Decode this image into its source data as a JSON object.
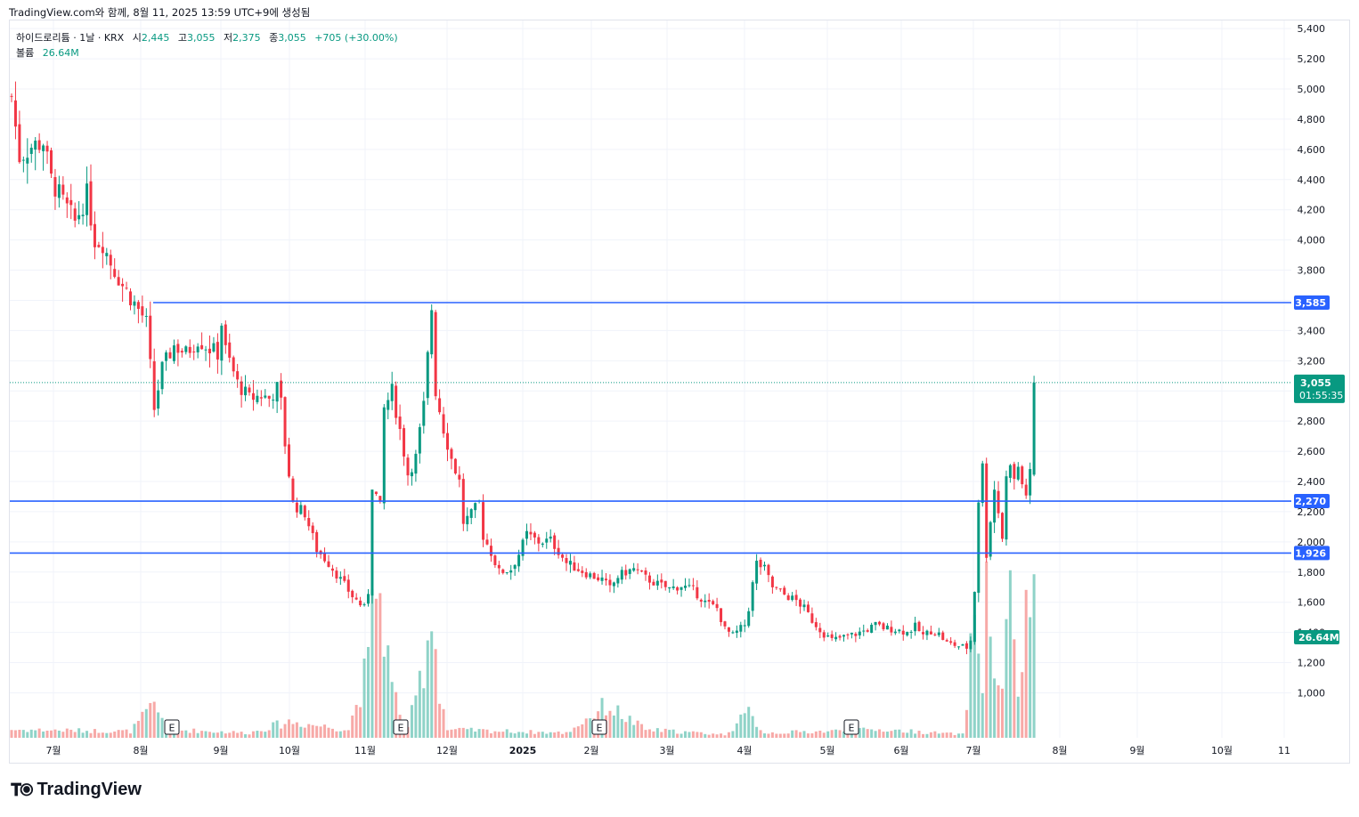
{
  "header": {
    "attribution": "TradingView.com와 함께, 8월 11, 2025 13:59 UTC+9에 생성됨"
  },
  "legend": {
    "symbol": "하이드로리튬 · 1날 · KRX",
    "open_label": "시",
    "open": "2,445",
    "high_label": "고",
    "high": "3,055",
    "low_label": "저",
    "low": "2,375",
    "close_label": "종",
    "close": "3,055",
    "change": "+705 (+30.00%)",
    "volume_label": "볼륨",
    "volume": "26.64M"
  },
  "footer": {
    "brand": "TradingView"
  },
  "colors": {
    "up": "#089981",
    "down": "#f23645",
    "up_vol": "#8fd3c8",
    "down_vol": "#f7a9a7",
    "hline": "#2962ff",
    "grid": "#f0f3fa"
  },
  "chart_data": {
    "type": "candlestick",
    "y_axis": {
      "ticks": [
        "1,000",
        "1,200",
        "1,400",
        "1,600",
        "1,800",
        "2,000",
        "2,200",
        "2,400",
        "2,600",
        "2,800",
        "3,000",
        "3,200",
        "3,400",
        "3,600",
        "3,800",
        "4,000",
        "4,200",
        "4,400",
        "4,600",
        "4,800",
        "5,000",
        "5,200",
        "5,400"
      ],
      "range": [
        920,
        5440
      ]
    },
    "x_axis": {
      "ticks": [
        "7월",
        "8월",
        "9월",
        "10월",
        "11월",
        "12월",
        "2025",
        "2월",
        "3월",
        "4월",
        "5월",
        "6월",
        "7월",
        "8월",
        "9월",
        "10월",
        "11"
      ]
    },
    "horizontal_lines": [
      3585,
      2270,
      1926
    ],
    "price_labels": [
      {
        "text": "3,585",
        "value": 3585,
        "color": "#2962ff"
      },
      {
        "text": "2,270",
        "value": 2270,
        "color": "#2962ff"
      },
      {
        "text": "1,926",
        "value": 1926,
        "color": "#2962ff"
      }
    ],
    "last_price": {
      "value": 3055,
      "text": "3,055",
      "countdown": "01:55:35"
    },
    "volume_label": "26.64M",
    "earnings_markers": [
      "E",
      "E",
      "E",
      "E"
    ],
    "price_path": [
      [
        0,
        4950
      ],
      [
        2,
        4550
      ],
      [
        5,
        4620
      ],
      [
        8,
        4650
      ],
      [
        10,
        4400
      ],
      [
        13,
        4250
      ],
      [
        16,
        4120
      ],
      [
        19,
        4300
      ],
      [
        21,
        4000
      ],
      [
        23,
        3980
      ],
      [
        25,
        3850
      ],
      [
        28,
        3700
      ],
      [
        31,
        3580
      ],
      [
        33,
        3500
      ],
      [
        34,
        3450
      ],
      [
        36,
        2880
      ],
      [
        38,
        3150
      ],
      [
        41,
        3300
      ],
      [
        44,
        3250
      ],
      [
        47,
        3340
      ],
      [
        50,
        3280
      ],
      [
        52,
        3250
      ],
      [
        53,
        3450
      ],
      [
        54,
        3270
      ],
      [
        57,
        3050
      ],
      [
        60,
        2950
      ],
      [
        63,
        2970
      ],
      [
        65,
        2950
      ],
      [
        67,
        3020
      ],
      [
        68,
        2920
      ],
      [
        69,
        2650
      ],
      [
        71,
        2250
      ],
      [
        74,
        2190
      ],
      [
        77,
        1950
      ],
      [
        80,
        1860
      ],
      [
        83,
        1750
      ],
      [
        86,
        1640
      ],
      [
        89,
        1560
      ],
      [
        90,
        1670
      ],
      [
        91,
        2380
      ],
      [
        93,
        2230
      ],
      [
        94,
        2880
      ],
      [
        96,
        3000
      ],
      [
        98,
        2740
      ],
      [
        100,
        2450
      ],
      [
        102,
        2560
      ],
      [
        104,
        2900
      ],
      [
        106,
        3550
      ],
      [
        107,
        3000
      ],
      [
        109,
        2750
      ],
      [
        111,
        2550
      ],
      [
        113,
        2400
      ],
      [
        114,
        2130
      ],
      [
        116,
        2180
      ],
      [
        118,
        2260
      ],
      [
        119,
        2040
      ],
      [
        121,
        1930
      ],
      [
        123,
        1800
      ],
      [
        126,
        1820
      ],
      [
        128,
        1920
      ],
      [
        130,
        2050
      ],
      [
        133,
        2000
      ],
      [
        136,
        2010
      ],
      [
        138,
        1940
      ],
      [
        140,
        1860
      ],
      [
        143,
        1820
      ],
      [
        146,
        1780
      ],
      [
        149,
        1750
      ],
      [
        151,
        1690
      ],
      [
        153,
        1770
      ],
      [
        155,
        1800
      ],
      [
        157,
        1820
      ],
      [
        158,
        1800
      ],
      [
        160,
        1760
      ],
      [
        163,
        1720
      ],
      [
        166,
        1690
      ],
      [
        169,
        1710
      ],
      [
        172,
        1680
      ],
      [
        175,
        1600
      ],
      [
        178,
        1560
      ],
      [
        180,
        1420
      ],
      [
        182,
        1380
      ],
      [
        185,
        1450
      ],
      [
        186,
        1560
      ],
      [
        187,
        1720
      ],
      [
        188,
        1860
      ],
      [
        190,
        1820
      ],
      [
        192,
        1700
      ],
      [
        195,
        1650
      ],
      [
        198,
        1610
      ],
      [
        200,
        1560
      ],
      [
        202,
        1480
      ],
      [
        205,
        1390
      ],
      [
        207,
        1350
      ],
      [
        210,
        1370
      ],
      [
        213,
        1390
      ],
      [
        216,
        1420
      ],
      [
        218,
        1450
      ],
      [
        220,
        1430
      ],
      [
        223,
        1420
      ],
      [
        226,
        1400
      ],
      [
        228,
        1440
      ],
      [
        230,
        1380
      ],
      [
        232,
        1410
      ],
      [
        234,
        1390
      ],
      [
        236,
        1330
      ],
      [
        239,
        1310
      ],
      [
        241,
        1300
      ],
      [
        242,
        1350
      ],
      [
        243,
        1680
      ],
      [
        244,
        2280
      ],
      [
        245,
        2500
      ],
      [
        246,
        1920
      ],
      [
        247,
        2150
      ],
      [
        248,
        2350
      ],
      [
        249,
        2200
      ],
      [
        250,
        2030
      ],
      [
        251,
        2420
      ],
      [
        252,
        2540
      ],
      [
        253,
        2400
      ],
      [
        254,
        2500
      ],
      [
        255,
        2380
      ],
      [
        256,
        2320
      ],
      [
        257,
        2445
      ],
      [
        258,
        3055
      ]
    ],
    "volume_path": [
      [
        0,
        0.05
      ],
      [
        30,
        0.04
      ],
      [
        36,
        0.2
      ],
      [
        40,
        0.05
      ],
      [
        60,
        0.03
      ],
      [
        70,
        0.1
      ],
      [
        85,
        0.05
      ],
      [
        90,
        0.45
      ],
      [
        92,
        1.0
      ],
      [
        94,
        0.7
      ],
      [
        96,
        0.3
      ],
      [
        100,
        0.05
      ],
      [
        104,
        0.45
      ],
      [
        106,
        0.8
      ],
      [
        108,
        0.3
      ],
      [
        110,
        0.05
      ],
      [
        140,
        0.03
      ],
      [
        150,
        0.2
      ],
      [
        160,
        0.05
      ],
      [
        180,
        0.02
      ],
      [
        186,
        0.15
      ],
      [
        190,
        0.03
      ],
      [
        220,
        0.05
      ],
      [
        240,
        0.02
      ],
      [
        243,
        0.75
      ],
      [
        245,
        0.35
      ],
      [
        246,
        1.0
      ],
      [
        248,
        0.3
      ],
      [
        250,
        0.4
      ],
      [
        252,
        0.8
      ],
      [
        254,
        0.3
      ],
      [
        258,
        1.05
      ]
    ]
  }
}
